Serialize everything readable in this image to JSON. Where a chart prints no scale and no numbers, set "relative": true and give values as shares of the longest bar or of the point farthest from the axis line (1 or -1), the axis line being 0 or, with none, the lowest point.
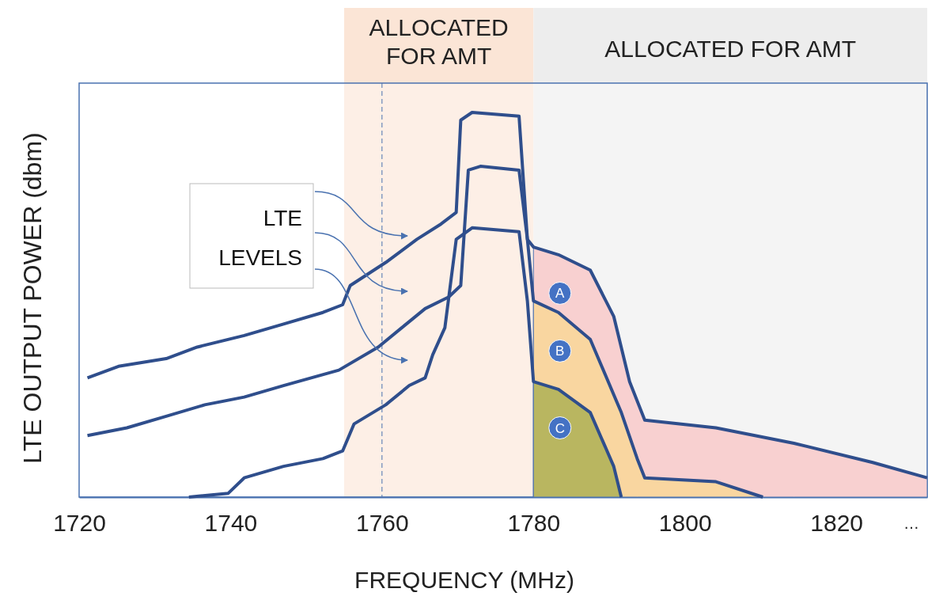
{
  "chart_data": {
    "type": "line",
    "relative": true,
    "xlabel": "FREQUENCY (MHz)",
    "ylabel": "LTE OUTPUT POWER (dbm)",
    "xlim": [
      1720,
      1832
    ],
    "xticks": [
      1720,
      1740,
      1760,
      1780,
      1800,
      1820
    ],
    "line_style": "solid",
    "marker": "none",
    "bands": [
      {
        "axis": "x",
        "from": 1755,
        "to": 1780,
        "label": "ALLOCATED FOR AMT",
        "color": "#fbe5d6"
      },
      {
        "axis": "x",
        "from": 1780,
        "to": 1832,
        "label": "ALLOCATED FOR AMT",
        "color": "#ededed"
      }
    ],
    "ref_lines": [
      {
        "axis": "x",
        "value": 1760,
        "line_style": "dashed",
        "color": "#4a72b0"
      }
    ],
    "annotations": [
      "LTE LEVELS",
      "…"
    ],
    "series": [
      {
        "name": "A",
        "type": "area",
        "color": "#f8d0d0",
        "x": [
          1780,
          1783.3,
          1787.5,
          1790.6,
          1792.7,
          1794.7,
          1804.1,
          1814.4,
          1824.8,
          1832
        ],
        "values": [
          0.65,
          0.63,
          0.59,
          0.47,
          0.3,
          0.2,
          0.18,
          0.14,
          0.09,
          0.05
        ]
      },
      {
        "name": "B",
        "type": "area",
        "color": "#f9d6a0",
        "x": [
          1780,
          1783.3,
          1787.5,
          1791.6,
          1793.7,
          1794.7,
          1804.1,
          1810.3
        ],
        "values": [
          0.51,
          0.48,
          0.41,
          0.22,
          0.1,
          0.05,
          0.04,
          0
        ]
      },
      {
        "name": "C",
        "type": "area",
        "color": "#b9b660",
        "x": [
          1780,
          1783.3,
          1787.5,
          1790.6,
          1791.6
        ],
        "values": [
          0.3,
          0.28,
          0.22,
          0.08,
          0
        ]
      },
      {
        "color": "#2f4e8c",
        "x": [
          1721.1,
          1725.2,
          1731.5,
          1735.6,
          1741.8,
          1747.0,
          1752.2,
          1754.8,
          1755.8,
          1760.5,
          1764.6,
          1767.8,
          1769.8,
          1770.4,
          1771.9,
          1778.1,
          1779.2,
          1780,
          1783.3,
          1787.5,
          1790.6,
          1792.7,
          1794.7,
          1804.1,
          1814.4,
          1824.8,
          1832
        ],
        "values": [
          0.31,
          0.34,
          0.36,
          0.39,
          0.42,
          0.45,
          0.48,
          0.5,
          0.55,
          0.61,
          0.67,
          0.71,
          0.74,
          0.98,
          1,
          0.99,
          0.67,
          0.65,
          0.63,
          0.59,
          0.47,
          0.3,
          0.2,
          0.18,
          0.14,
          0.09,
          0.05
        ]
      },
      {
        "color": "#2f4e8c",
        "x": [
          1721.1,
          1726.3,
          1731.5,
          1736.6,
          1741.8,
          1747.0,
          1754.3,
          1759.5,
          1762.6,
          1765.7,
          1768.8,
          1770.4,
          1771.4,
          1773.0,
          1778.1,
          1779.2,
          1780,
          1783.3,
          1787.5,
          1791.6,
          1793.7,
          1794.7,
          1804.1,
          1810.3
        ],
        "values": [
          0.16,
          0.18,
          0.21,
          0.24,
          0.26,
          0.29,
          0.33,
          0.39,
          0.44,
          0.49,
          0.52,
          0.55,
          0.85,
          0.86,
          0.85,
          0.67,
          0.51,
          0.48,
          0.41,
          0.22,
          0.1,
          0.05,
          0.04,
          0
        ]
      },
      {
        "color": "#2f4e8c",
        "x": [
          1734.5,
          1739.7,
          1741.8,
          1747.0,
          1752.2,
          1754.8,
          1756.3,
          1760.5,
          1763.6,
          1765.7,
          1766.7,
          1768.3,
          1769.8,
          1771.9,
          1778.1,
          1779.2,
          1780,
          1783.3,
          1787.5,
          1790.6,
          1791.6
        ],
        "values": [
          0,
          0.01,
          0.05,
          0.08,
          0.1,
          0.12,
          0.19,
          0.24,
          0.29,
          0.31,
          0.37,
          0.44,
          0.67,
          0.7,
          0.69,
          0.51,
          0.3,
          0.28,
          0.22,
          0.08,
          0
        ]
      }
    ]
  }
}
